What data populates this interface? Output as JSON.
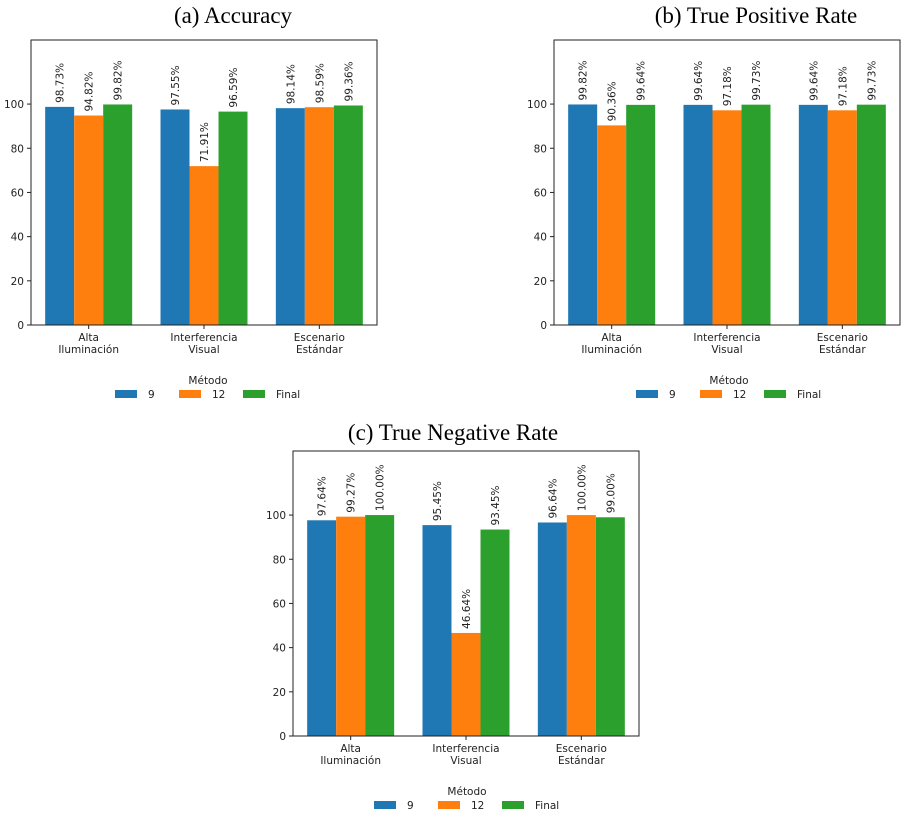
{
  "chart_data": [
    {
      "type": "bar",
      "title": "(a) Accuracy",
      "categories": [
        [
          "Alta",
          "Iluminación"
        ],
        [
          "Interferencia",
          "Visual"
        ],
        [
          "Escenario",
          "Estándar"
        ]
      ],
      "series": [
        {
          "name": "9",
          "color": "#1f77b4",
          "values": [
            98.73,
            97.55,
            98.14
          ],
          "labels": [
            "98.73%",
            "97.55%",
            "98.14%"
          ]
        },
        {
          "name": "12",
          "color": "#ff7f0e",
          "values": [
            94.82,
            71.91,
            98.59
          ],
          "labels": [
            "94.82%",
            "71.91%",
            "98.59%"
          ]
        },
        {
          "name": "Final",
          "color": "#2ca02c",
          "values": [
            99.82,
            96.59,
            99.36
          ],
          "labels": [
            "99.82%",
            "96.59%",
            "99.36%"
          ]
        }
      ],
      "yticks": [
        0,
        20,
        40,
        60,
        80,
        100
      ],
      "ylim": [
        0,
        129
      ],
      "legend": {
        "title": "Método",
        "position": "bottom-center"
      }
    },
    {
      "type": "bar",
      "title": "(b) True Positive Rate",
      "categories": [
        [
          "Alta",
          "Iluminación"
        ],
        [
          "Interferencia",
          "Visual"
        ],
        [
          "Escenario",
          "Estándar"
        ]
      ],
      "series": [
        {
          "name": "9",
          "color": "#1f77b4",
          "values": [
            99.82,
            99.64,
            99.64
          ],
          "labels": [
            "99.82%",
            "99.64%",
            "99.64%"
          ]
        },
        {
          "name": "12",
          "color": "#ff7f0e",
          "values": [
            90.36,
            97.18,
            97.18
          ],
          "labels": [
            "90.36%",
            "97.18%",
            "97.18%"
          ]
        },
        {
          "name": "Final",
          "color": "#2ca02c",
          "values": [
            99.64,
            99.73,
            99.73
          ],
          "labels": [
            "99.64%",
            "99.73%",
            "99.73%"
          ]
        }
      ],
      "yticks": [
        0,
        20,
        40,
        60,
        80,
        100
      ],
      "ylim": [
        0,
        129
      ],
      "legend": {
        "title": "Método",
        "position": "bottom-center"
      }
    },
    {
      "type": "bar",
      "title": "(c) True Negative Rate",
      "categories": [
        [
          "Alta",
          "Iluminación"
        ],
        [
          "Interferencia",
          "Visual"
        ],
        [
          "Escenario",
          "Estándar"
        ]
      ],
      "series": [
        {
          "name": "9",
          "color": "#1f77b4",
          "values": [
            97.64,
            95.45,
            96.64
          ],
          "labels": [
            "97.64%",
            "95.45%",
            "96.64%"
          ]
        },
        {
          "name": "12",
          "color": "#ff7f0e",
          "values": [
            99.27,
            46.64,
            100.0
          ],
          "labels": [
            "99.27%",
            "46.64%",
            "100.00%"
          ]
        },
        {
          "name": "Final",
          "color": "#2ca02c",
          "values": [
            100.0,
            93.45,
            99.0
          ],
          "labels": [
            "100.00%",
            "93.45%",
            "99.00%"
          ]
        }
      ],
      "yticks": [
        0,
        20,
        40,
        60,
        80,
        100
      ],
      "ylim": [
        0,
        129
      ],
      "legend": {
        "title": "Método",
        "position": "bottom-center"
      }
    }
  ]
}
